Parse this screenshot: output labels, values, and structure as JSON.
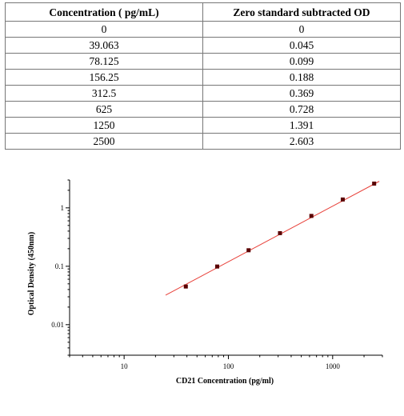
{
  "table": {
    "headers": [
      "Concentration ( pg/mL)",
      "Zero standard subtracted OD"
    ],
    "rows": [
      [
        "0",
        "0"
      ],
      [
        "39.063",
        "0.045"
      ],
      [
        "78.125",
        "0.099"
      ],
      [
        "156.25",
        "0.188"
      ],
      [
        "312.5",
        "0.369"
      ],
      [
        "625",
        "0.728"
      ],
      [
        "1250",
        "1.391"
      ],
      [
        "2500",
        "2.603"
      ]
    ]
  },
  "chart_data": {
    "type": "scatter",
    "xlabel": "CD21 Concentration (pg/ml)",
    "ylabel": "Optical Density (450nm)",
    "x_scale": "log",
    "y_scale": "log",
    "xlim": [
      3,
      3000
    ],
    "ylim": [
      0.003,
      3
    ],
    "x_ticks": [
      10,
      100,
      1000
    ],
    "x_tick_labels": [
      "10",
      "100",
      "1000"
    ],
    "y_ticks": [
      0.01,
      0.1,
      1
    ],
    "y_tick_labels": [
      "0.01",
      "0.1",
      "1"
    ],
    "grid": false,
    "legend": "none",
    "colors": {
      "points": "#5a0000",
      "fit_line": "#e8413a",
      "axis": "#000000"
    },
    "series": [
      {
        "x": [
          39.063,
          78.125,
          156.25,
          312.5,
          625,
          1250,
          2500
        ],
        "y": [
          0.045,
          0.099,
          0.188,
          0.369,
          0.728,
          1.391,
          2.603
        ]
      }
    ],
    "fit_line": {
      "x": [
        25,
        2800
      ],
      "y": [
        0.032,
        2.85
      ]
    }
  }
}
